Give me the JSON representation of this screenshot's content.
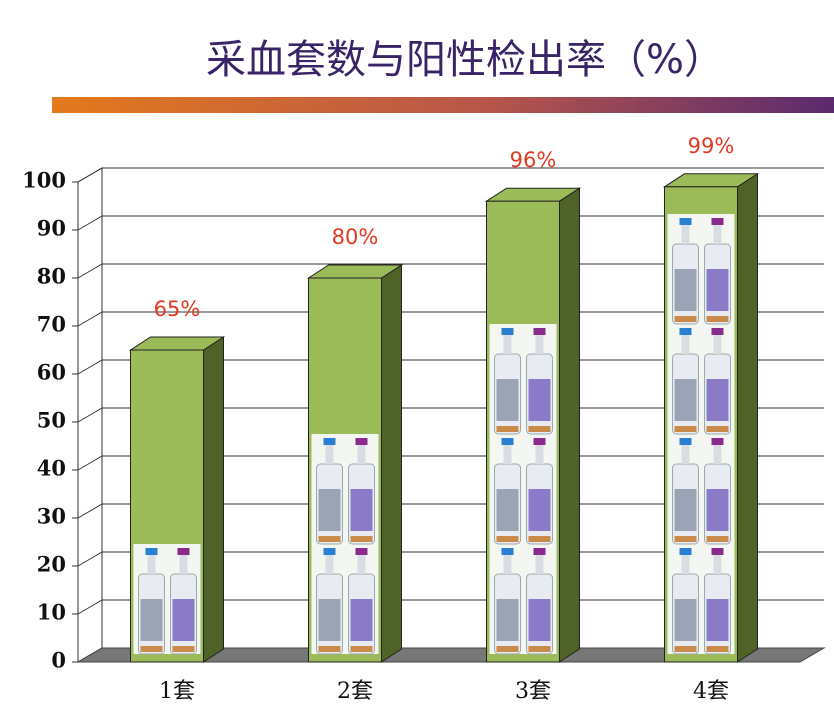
{
  "chart_data": {
    "type": "bar3d",
    "title": "采血套数与阳性检出率（%）",
    "categories": [
      "1套",
      "2套",
      "3套",
      "4套"
    ],
    "values": [
      65,
      80,
      96,
      99
    ],
    "value_labels": [
      "65%",
      "80%",
      "96%",
      "99%"
    ],
    "color": "#9bbb59",
    "ylim": [
      0,
      100
    ],
    "yticks": [
      0,
      10,
      20,
      30,
      40,
      50,
      60,
      70,
      80,
      90,
      100
    ],
    "grid": true
  }
}
